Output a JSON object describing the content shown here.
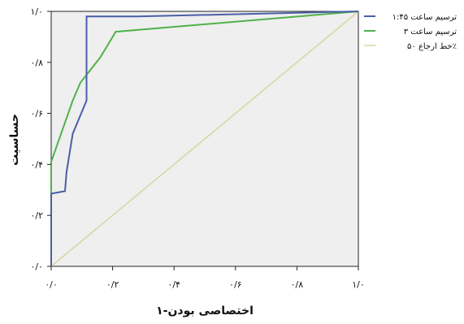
{
  "chart_data": {
    "type": "line",
    "xlabel": "اختصاصی بودن-۱",
    "ylabel": "حساسیت",
    "xlim": [
      0,
      1
    ],
    "ylim": [
      0,
      1
    ],
    "x_ticks": [
      0,
      0.2,
      0.4,
      0.6,
      0.8,
      1.0
    ],
    "y_ticks": [
      0,
      0.2,
      0.4,
      0.6,
      0.8,
      1.0
    ],
    "x_tick_labels": [
      "۰/۰",
      "۰/۲",
      "۰/۴",
      "۰/۶",
      "۰/۸",
      "۱/۰"
    ],
    "y_tick_labels": [
      "۰/۰",
      "۰/۲",
      "۰/۴",
      "۰/۶",
      "۰/۸",
      "۱/۰"
    ],
    "grid": false,
    "legend_position": "right",
    "background": "#efefef",
    "series": [
      {
        "name": "ترسیم ساعت ۱:۴۵",
        "color": "#4a5fa6",
        "x": [
          0,
          0,
          0.045,
          0.05,
          0.07,
          0.115,
          0.115,
          0.28,
          1.0
        ],
        "y": [
          0,
          0.285,
          0.295,
          0.37,
          0.52,
          0.65,
          0.98,
          0.98,
          1.0
        ]
      },
      {
        "name": "ترسیم ساعت ۳",
        "color": "#4fb24a",
        "x": [
          0,
          0,
          0.07,
          0.095,
          0.16,
          0.21,
          1.0
        ],
        "y": [
          0,
          0.41,
          0.65,
          0.72,
          0.82,
          0.92,
          1.0
        ]
      },
      {
        "name": "خط ارجاع ۵۰٪",
        "color": "#d6d6a0",
        "x": [
          0,
          1.0
        ],
        "y": [
          0,
          1.0
        ]
      }
    ]
  }
}
